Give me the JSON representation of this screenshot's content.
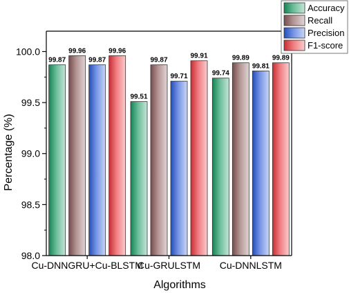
{
  "chart_data": {
    "type": "bar",
    "title": "",
    "xlabel": "Algorithms",
    "ylabel": "Percentage (%)",
    "ylim": [
      98.0,
      100.2
    ],
    "yticks": [
      98.0,
      98.5,
      99.0,
      99.5,
      100.0
    ],
    "ytick_labels": [
      "98.0",
      "98.5",
      "99.0",
      "99.5",
      "100.0"
    ],
    "grid": false,
    "legend_position": "top-right",
    "categories": [
      "Cu-DNNGRU+Cu-BLSTM",
      "Cu-GRULSTM",
      "Cu-DNNLSTM"
    ],
    "series": [
      {
        "name": "Accuracy",
        "color": "#1a9a62",
        "values": [
          99.87,
          99.51,
          99.74
        ],
        "labels": [
          "99.87",
          "99.51",
          "99.74"
        ]
      },
      {
        "name": "Recall",
        "color": "#8c5a5a",
        "values": [
          99.96,
          99.87,
          99.89
        ],
        "labels": [
          "99.96",
          "99.87",
          "99.89"
        ]
      },
      {
        "name": "Precision",
        "color": "#2a5bd7",
        "values": [
          99.87,
          99.71,
          99.81
        ],
        "labels": [
          "99.87",
          "99.71",
          "99.81"
        ]
      },
      {
        "name": "F1-score",
        "color": "#e8363c",
        "values": [
          99.96,
          99.91,
          99.89
        ],
        "labels": [
          "99.96",
          "99.91",
          "99.89"
        ]
      }
    ]
  }
}
